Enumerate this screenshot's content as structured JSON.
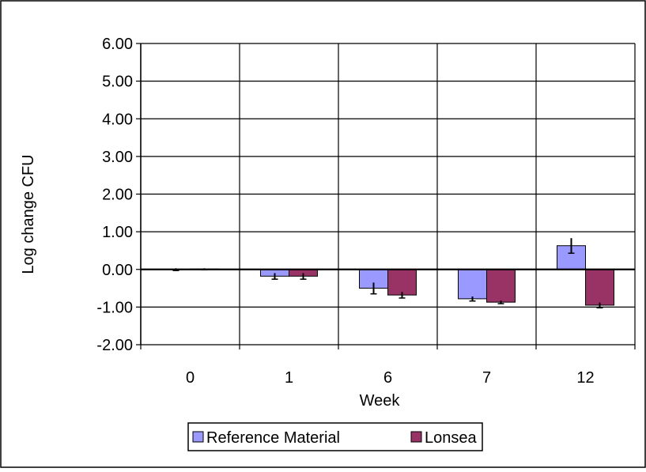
{
  "chart_data": {
    "type": "bar",
    "categories": [
      "0",
      "1",
      "6",
      "7",
      "12"
    ],
    "series": [
      {
        "name": "Reference Material",
        "values": [
          0.0,
          -0.18,
          -0.5,
          -0.78,
          0.63
        ],
        "errors": [
          0.03,
          0.08,
          0.15,
          0.06,
          0.2
        ],
        "color": "#9999ff"
      },
      {
        "name": "Lonsea",
        "values": [
          0.01,
          -0.18,
          -0.68,
          -0.87,
          -0.95
        ],
        "errors": [
          0.02,
          0.08,
          0.08,
          0.04,
          0.07
        ],
        "color": "#993366"
      }
    ],
    "xlabel": "Week",
    "ylabel": "Log change CFU",
    "ylim": [
      -2,
      6
    ],
    "yticks": [
      "-2.00",
      "-1.00",
      "0.00",
      "1.00",
      "2.00",
      "3.00",
      "4.00",
      "5.00",
      "6.00"
    ],
    "grid": "vertical and horizontal",
    "legend_position": "bottom"
  }
}
